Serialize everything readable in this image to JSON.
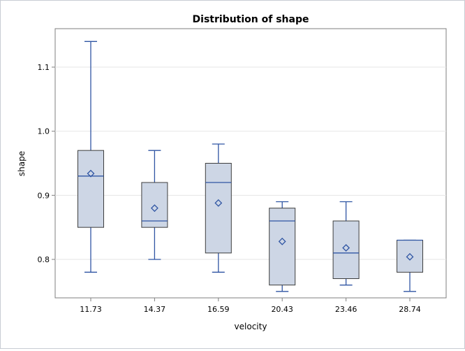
{
  "chart_data": {
    "type": "box",
    "title": "Distribution of shape",
    "xlabel": "velocity",
    "ylabel": "shape",
    "ylim": [
      0.74,
      1.16
    ],
    "yticks": [
      "0.8",
      "0.9",
      "1.0",
      "1.1"
    ],
    "ytick_values": [
      0.8,
      0.9,
      1.0,
      1.1
    ],
    "grid": "horizontal",
    "categories": [
      "11.73",
      "14.37",
      "16.59",
      "20.43",
      "23.46",
      "28.74"
    ],
    "boxes": [
      {
        "category": "11.73",
        "min": 0.78,
        "q1": 0.85,
        "median": 0.93,
        "mean": 0.934,
        "q3": 0.97,
        "max": 1.14
      },
      {
        "category": "14.37",
        "min": 0.8,
        "q1": 0.85,
        "median": 0.86,
        "mean": 0.88,
        "q3": 0.92,
        "max": 0.97
      },
      {
        "category": "16.59",
        "min": 0.78,
        "q1": 0.81,
        "median": 0.92,
        "mean": 0.888,
        "q3": 0.95,
        "max": 0.98
      },
      {
        "category": "20.43",
        "min": 0.75,
        "q1": 0.76,
        "median": 0.86,
        "mean": 0.828,
        "q3": 0.88,
        "max": 0.89
      },
      {
        "category": "23.46",
        "min": 0.76,
        "q1": 0.77,
        "median": 0.81,
        "mean": 0.818,
        "q3": 0.86,
        "max": 0.89
      },
      {
        "category": "28.74",
        "min": 0.75,
        "q1": 0.78,
        "median": 0.83,
        "mean": 0.804,
        "q3": 0.83,
        "max": 0.83
      }
    ],
    "colors": {
      "box_fill": "#cdd6e5",
      "box_stroke": "#3d3d3d",
      "whisker": "#2f55a3",
      "median": "#2f55a3",
      "mean_marker": "#2f55a3",
      "grid": "#e6e6e6",
      "axis": "#7f7f7f"
    }
  }
}
